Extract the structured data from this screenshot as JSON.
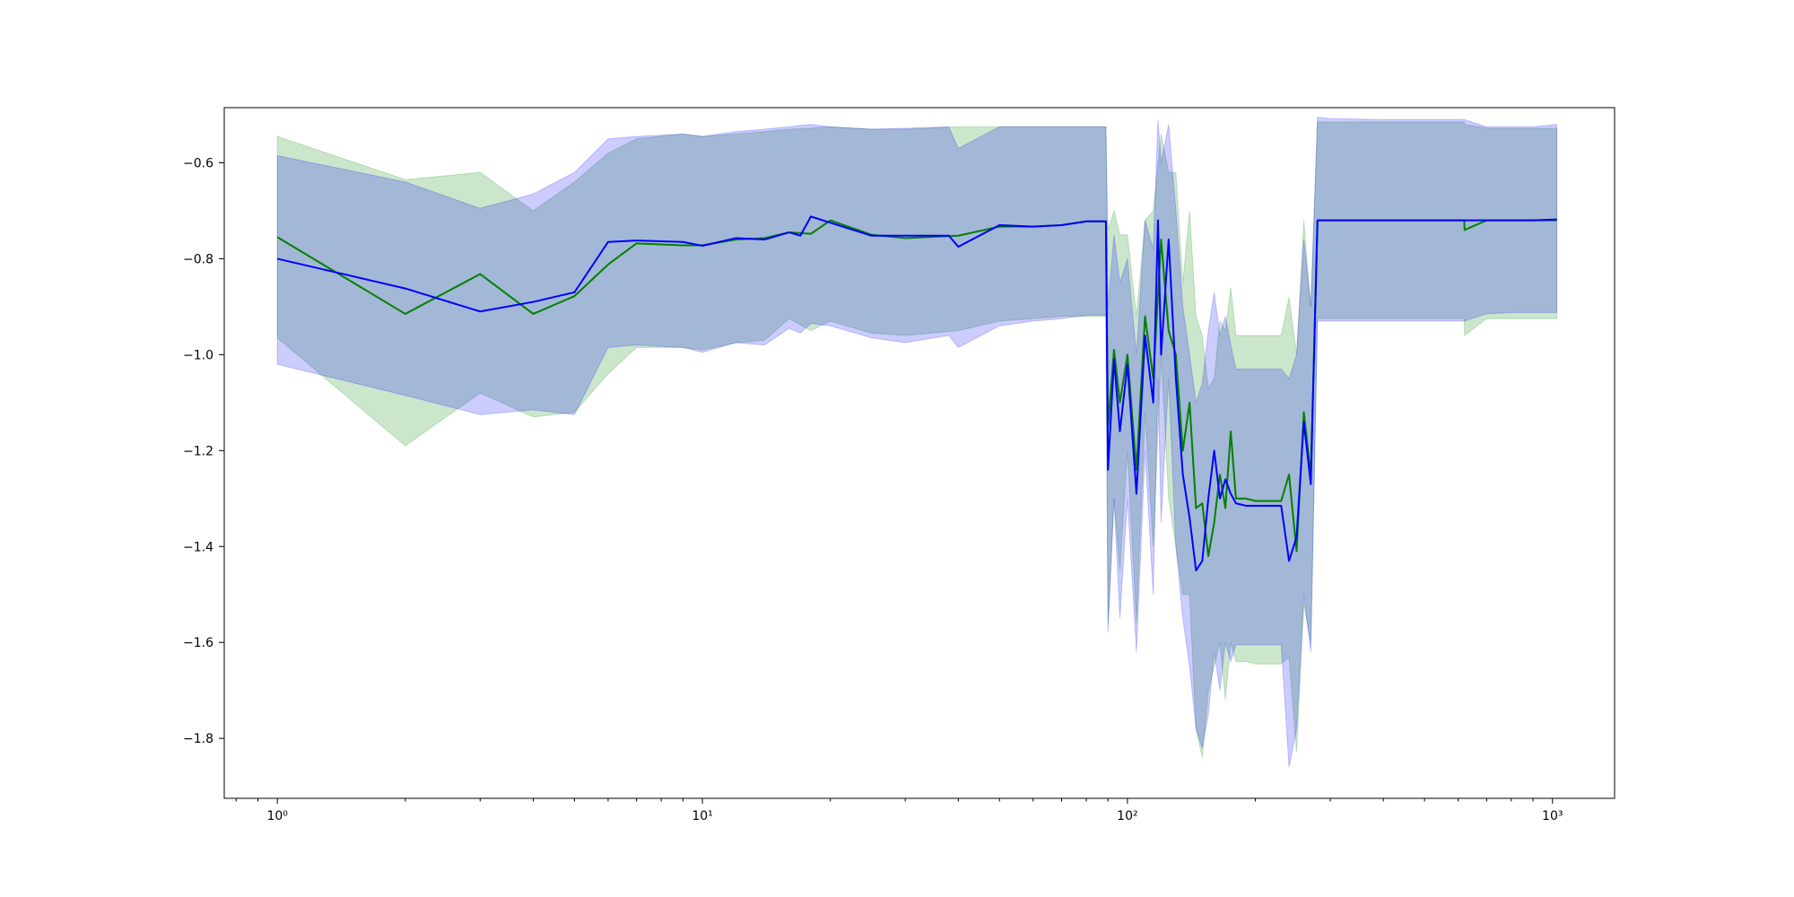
{
  "chart_data": {
    "type": "line",
    "title": "",
    "xlabel": "",
    "ylabel": "",
    "xscale": "log",
    "xlim": [
      0.75,
      1400
    ],
    "ylim": [
      -1.925,
      -0.485
    ],
    "grid": false,
    "legend": "none",
    "x_ticks": [
      {
        "value": 1,
        "label": "10⁰"
      },
      {
        "value": 10,
        "label": "10¹"
      },
      {
        "value": 100,
        "label": "10²"
      },
      {
        "value": 1000,
        "label": "10³"
      }
    ],
    "y_ticks": [
      {
        "value": -0.6,
        "label": "−0.6"
      },
      {
        "value": -0.8,
        "label": "−0.8"
      },
      {
        "value": -1.0,
        "label": "−1.0"
      },
      {
        "value": -1.2,
        "label": "−1.2"
      },
      {
        "value": -1.4,
        "label": "−1.4"
      },
      {
        "value": -1.6,
        "label": "−1.6"
      },
      {
        "value": -1.8,
        "label": "−1.8"
      }
    ],
    "series": [
      {
        "color": "#008000",
        "band_color": "#008000",
        "x": [
          1,
          2,
          3,
          4,
          5,
          6,
          7,
          9,
          10,
          12,
          14,
          16,
          18,
          20,
          25,
          30,
          40,
          50,
          60,
          70,
          80,
          89,
          90,
          93,
          96,
          100,
          105,
          110,
          115,
          120,
          125,
          130,
          135,
          140,
          145,
          150,
          155,
          160,
          165,
          170,
          175,
          180,
          190,
          200,
          210,
          220,
          230,
          240,
          250,
          260,
          270,
          280,
          300,
          400,
          500,
          620,
          621,
          700,
          800,
          900,
          1024
        ],
        "y": [
          -0.755,
          -0.915,
          -0.832,
          -0.915,
          -0.878,
          -0.812,
          -0.768,
          -0.772,
          -0.772,
          -0.76,
          -0.757,
          -0.745,
          -0.748,
          -0.72,
          -0.75,
          -0.757,
          -0.752,
          -0.733,
          -0.733,
          -0.73,
          -0.722,
          -0.722,
          -1.15,
          -0.99,
          -1.1,
          -1.0,
          -1.24,
          -0.92,
          -1.05,
          -0.76,
          -0.95,
          -1.0,
          -1.2,
          -1.1,
          -1.32,
          -1.31,
          -1.42,
          -1.35,
          -1.25,
          -1.32,
          -1.16,
          -1.3,
          -1.3,
          -1.305,
          -1.305,
          -1.305,
          -1.305,
          -1.25,
          -1.41,
          -1.12,
          -1.25,
          -0.72,
          -0.72,
          -0.72,
          -0.72,
          -0.72,
          -0.74,
          -0.72,
          -0.72,
          -0.72,
          -0.72
        ],
        "lower": [
          -0.965,
          -1.19,
          -1.08,
          -1.13,
          -1.12,
          -1.04,
          -0.985,
          -0.985,
          -0.99,
          -0.975,
          -0.97,
          -0.925,
          -0.95,
          -0.93,
          -0.955,
          -0.96,
          -0.95,
          -0.93,
          -0.925,
          -0.92,
          -0.92,
          -0.92,
          -1.56,
          -1.3,
          -1.45,
          -1.2,
          -1.56,
          -1.12,
          -1.4,
          -1.0,
          -1.3,
          -1.4,
          -1.5,
          -1.5,
          -1.78,
          -1.84,
          -1.7,
          -1.65,
          -1.6,
          -1.72,
          -1.6,
          -1.64,
          -1.64,
          -1.645,
          -1.645,
          -1.645,
          -1.645,
          -1.63,
          -1.83,
          -1.52,
          -1.6,
          -0.925,
          -0.925,
          -0.925,
          -0.925,
          -0.925,
          -0.96,
          -0.925,
          -0.925,
          -0.925,
          -0.925
        ],
        "upper": [
          -0.545,
          -0.635,
          -0.62,
          -0.7,
          -0.64,
          -0.58,
          -0.55,
          -0.54,
          -0.545,
          -0.54,
          -0.535,
          -0.53,
          -0.528,
          -0.525,
          -0.53,
          -0.53,
          -0.525,
          -0.525,
          -0.525,
          -0.525,
          -0.525,
          -0.525,
          -0.74,
          -0.7,
          -0.75,
          -0.75,
          -0.92,
          -0.72,
          -0.7,
          -0.54,
          -0.62,
          -0.62,
          -0.85,
          -0.7,
          -0.92,
          -0.96,
          -1.07,
          -1.05,
          -0.93,
          -0.95,
          -0.86,
          -0.96,
          -0.96,
          -0.96,
          -0.96,
          -0.96,
          -0.96,
          -0.88,
          -1.0,
          -0.72,
          -0.9,
          -0.515,
          -0.515,
          -0.515,
          -0.515,
          -0.515,
          -0.52,
          -0.528,
          -0.528,
          -0.528,
          -0.528
        ]
      },
      {
        "color": "#0000ff",
        "band_color": "#0000ff",
        "x": [
          1,
          2,
          3,
          4,
          5,
          6,
          7,
          9,
          10,
          12,
          14,
          16,
          17,
          18,
          20,
          25,
          30,
          38,
          40,
          50,
          60,
          70,
          80,
          89,
          90,
          93,
          96,
          100,
          105,
          110,
          115,
          118,
          120,
          125,
          130,
          135,
          140,
          145,
          150,
          155,
          160,
          165,
          170,
          175,
          180,
          190,
          200,
          210,
          220,
          230,
          240,
          250,
          260,
          270,
          280,
          300,
          400,
          500,
          620,
          700,
          800,
          900,
          1024
        ],
        "y": [
          -0.8,
          -0.862,
          -0.91,
          -0.89,
          -0.87,
          -0.765,
          -0.762,
          -0.765,
          -0.773,
          -0.757,
          -0.76,
          -0.745,
          -0.752,
          -0.712,
          -0.725,
          -0.752,
          -0.752,
          -0.752,
          -0.775,
          -0.73,
          -0.733,
          -0.73,
          -0.722,
          -0.722,
          -1.24,
          -1.01,
          -1.16,
          -1.02,
          -1.29,
          -0.96,
          -1.1,
          -0.72,
          -1.0,
          -0.76,
          -1.05,
          -1.25,
          -1.34,
          -1.45,
          -1.43,
          -1.3,
          -1.2,
          -1.3,
          -1.26,
          -1.29,
          -1.31,
          -1.315,
          -1.315,
          -1.315,
          -1.315,
          -1.315,
          -1.43,
          -1.38,
          -1.14,
          -1.27,
          -0.72,
          -0.72,
          -0.72,
          -0.72,
          -0.72,
          -0.72,
          -0.72,
          -0.72,
          -0.718
        ],
        "lower": [
          -1.02,
          -1.085,
          -1.125,
          -1.115,
          -1.125,
          -0.985,
          -0.98,
          -0.985,
          -0.995,
          -0.975,
          -0.98,
          -0.945,
          -0.955,
          -0.935,
          -0.94,
          -0.965,
          -0.975,
          -0.96,
          -0.985,
          -0.94,
          -0.93,
          -0.925,
          -0.918,
          -0.918,
          -1.58,
          -1.3,
          -1.55,
          -1.3,
          -1.62,
          -1.2,
          -1.5,
          -1.05,
          -1.35,
          -1.05,
          -1.4,
          -1.55,
          -1.65,
          -1.78,
          -1.82,
          -1.75,
          -1.62,
          -1.7,
          -1.6,
          -1.64,
          -1.605,
          -1.605,
          -1.605,
          -1.605,
          -1.605,
          -1.605,
          -1.86,
          -1.78,
          -1.5,
          -1.62,
          -0.93,
          -0.93,
          -0.93,
          -0.93,
          -0.93,
          -0.915,
          -0.912,
          -0.912,
          -0.912
        ],
        "upper": [
          -0.585,
          -0.64,
          -0.695,
          -0.665,
          -0.62,
          -0.55,
          -0.545,
          -0.54,
          -0.545,
          -0.535,
          -0.53,
          -0.525,
          -0.522,
          -0.52,
          -0.525,
          -0.53,
          -0.528,
          -0.525,
          -0.57,
          -0.525,
          -0.525,
          -0.525,
          -0.525,
          -0.525,
          -0.9,
          -0.75,
          -0.85,
          -0.8,
          -1.0,
          -0.72,
          -0.78,
          -0.51,
          -0.6,
          -0.52,
          -0.7,
          -0.9,
          -1.0,
          -1.1,
          -1.06,
          -0.95,
          -0.87,
          -0.96,
          -0.92,
          -0.98,
          -1.03,
          -1.03,
          -1.03,
          -1.03,
          -1.03,
          -1.03,
          -1.05,
          -1.0,
          -0.76,
          -0.9,
          -0.505,
          -0.508,
          -0.51,
          -0.51,
          -0.51,
          -0.525,
          -0.525,
          -0.525,
          -0.52
        ]
      }
    ]
  }
}
